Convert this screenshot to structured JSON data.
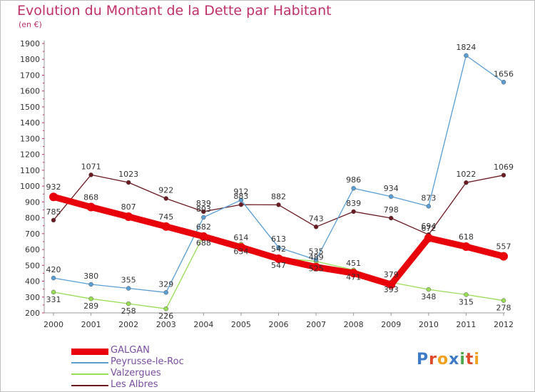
{
  "header": {
    "title": "Evolution du Montant de la Dette par Habitant",
    "subtitle": "(en €)"
  },
  "logo": {
    "text": [
      "P",
      "r",
      "o",
      "x",
      "i",
      "t",
      "i"
    ]
  },
  "chart_data": {
    "type": "line",
    "x": [
      "2000",
      "2001",
      "2002",
      "2003",
      "2004",
      "2005",
      "2006",
      "2007",
      "2008",
      "2009",
      "2010",
      "2011",
      "2012"
    ],
    "ylim": [
      200,
      1900
    ],
    "yticks": [
      200,
      300,
      400,
      500,
      600,
      700,
      800,
      900,
      1000,
      1100,
      1200,
      1300,
      1400,
      1500,
      1600,
      1700,
      1800,
      1900
    ],
    "grid": false,
    "legend_position": "bottom-left",
    "series": [
      {
        "name": "GALGAN",
        "color": "#e8000b",
        "values": [
          932,
          868,
          807,
          745,
          682,
          614,
          542,
          489,
          451,
          379,
          672,
          618,
          557
        ],
        "labels": [
          "932",
          "868",
          "807",
          "745",
          "682",
          "614",
          "542",
          "489",
          "451",
          "379",
          "672",
          "618",
          "557"
        ]
      },
      {
        "name": "Peyrusse-le-Roc",
        "color": "#5a9fd4",
        "values": [
          420,
          380,
          355,
          329,
          803,
          912,
          613,
          535,
          986,
          934,
          873,
          1824,
          1656
        ],
        "labels": [
          "420",
          "380",
          "355",
          "329",
          "803",
          "912",
          "613",
          "535",
          "986",
          "934",
          "873",
          "1824",
          "1656"
        ]
      },
      {
        "name": "Valzergues",
        "color": "#99dd55",
        "values": [
          331,
          289,
          258,
          226,
          688,
          634,
          547,
          525,
          471,
          393,
          348,
          315,
          278
        ],
        "labels": [
          "331",
          "289",
          "258",
          "226",
          "688",
          "634",
          "547",
          "525",
          "471",
          "393",
          "348",
          "315",
          "278"
        ]
      },
      {
        "name": "Les Albres",
        "color": "#6b1a22",
        "values": [
          785,
          1071,
          1023,
          922,
          839,
          883,
          882,
          743,
          839,
          798,
          694,
          1022,
          1069
        ],
        "labels": [
          "785",
          "1071",
          "1023",
          "922",
          "839",
          "883",
          "882",
          "743",
          "839",
          "798",
          "694",
          "1022",
          "1069"
        ]
      }
    ]
  }
}
